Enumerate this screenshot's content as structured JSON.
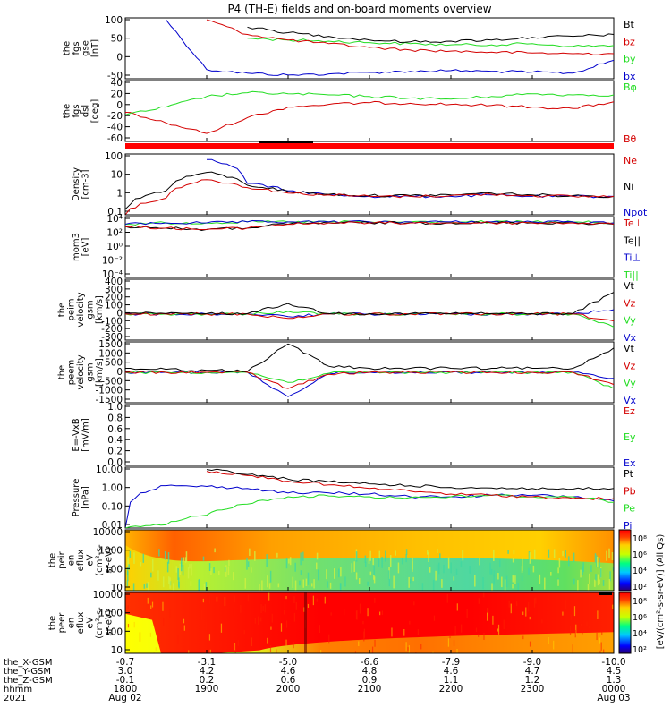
{
  "title": "P4 (TH-E) fields and on-board moments overview",
  "colors": {
    "black": "#000000",
    "red": "#d40000",
    "green": "#22dd22",
    "blue": "#0000cc",
    "flag_red": "#ff0000"
  },
  "time_axis": {
    "hhmm_ticks": [
      "1800",
      "1900",
      "2000",
      "2100",
      "2200",
      "2300",
      "0000"
    ],
    "x_gsm": [
      "-0.7",
      "-3.1",
      "-5.0",
      "-6.6",
      "-7.9",
      "-9.0",
      "-10.0"
    ],
    "y_gsm": [
      "3.0",
      "4.2",
      "4.6",
      "4.8",
      "4.6",
      "4.7",
      "4.5"
    ],
    "z_gsm": [
      "-0.1",
      "0.2",
      "0.6",
      "0.9",
      "1.1",
      "1.2",
      "1.3"
    ],
    "row_labels": [
      "the_X-GSM",
      "the_Y-GSM",
      "the_Z-GSM",
      "hhmm",
      "2021"
    ],
    "date_labels": [
      "Aug 02",
      "Aug 03"
    ]
  },
  "panels": [
    {
      "id": "fgs_gse",
      "ylabel_lines": [
        "the",
        "fgs",
        "gse",
        "[nT]"
      ],
      "yticks": [
        "100",
        "50",
        "0",
        "-50"
      ],
      "legend": [
        {
          "label": "Bt",
          "color": "black"
        },
        {
          "label": "bz",
          "color": "red"
        },
        {
          "label": "by",
          "color": "green"
        },
        {
          "label": "bx",
          "color": "blue"
        }
      ]
    },
    {
      "id": "fgs_dsl",
      "ylabel_lines": [
        "the",
        "fgs",
        "dsl",
        "[deg]"
      ],
      "yticks": [
        "40",
        "20",
        "0",
        "-20",
        "-40",
        "-60"
      ],
      "legend": [
        {
          "label": "Bφ",
          "color": "green"
        },
        {
          "label": "Bθ",
          "color": "red"
        }
      ]
    },
    {
      "id": "density",
      "ylabel_lines": [
        "Density",
        "[cm-3]"
      ],
      "yticks": [
        "100",
        "10",
        "1",
        "0.1"
      ],
      "legend": [
        {
          "label": "Ne",
          "color": "red"
        },
        {
          "label": "Ni",
          "color": "black"
        },
        {
          "label": "Npot",
          "color": "blue"
        }
      ]
    },
    {
      "id": "temperature",
      "ylabel_lines": [
        "mom3",
        "[eV]"
      ],
      "yticks": [
        "10⁴",
        "10²",
        "10⁰",
        "10⁻²",
        "10⁻⁴"
      ],
      "legend": [
        {
          "label": "Te⊥",
          "color": "red"
        },
        {
          "label": "Te||",
          "color": "black"
        },
        {
          "label": "Ti⊥",
          "color": "blue"
        },
        {
          "label": "Ti||",
          "color": "green"
        }
      ]
    },
    {
      "id": "peim_velocity",
      "ylabel_lines": [
        "the",
        "peim",
        "velocity",
        "gsm",
        "[km/s]"
      ],
      "yticks": [
        "400",
        "300",
        "200",
        "100",
        "0",
        "-100",
        "-200",
        "-300"
      ],
      "legend": [
        {
          "label": "Vt",
          "color": "black"
        },
        {
          "label": "Vz",
          "color": "red"
        },
        {
          "label": "Vy",
          "color": "green"
        },
        {
          "label": "Vx",
          "color": "blue"
        }
      ]
    },
    {
      "id": "peem_velocity",
      "ylabel_lines": [
        "the",
        "peem",
        "velocity",
        "gsm",
        "[km/s]"
      ],
      "yticks": [
        "1500",
        "1000",
        "500",
        "0",
        "-500",
        "-1000",
        "-1500"
      ],
      "legend": [
        {
          "label": "Vt",
          "color": "black"
        },
        {
          "label": "Vz",
          "color": "red"
        },
        {
          "label": "Vy",
          "color": "green"
        },
        {
          "label": "Vx",
          "color": "blue"
        }
      ]
    },
    {
      "id": "efield",
      "ylabel_lines": [
        "E=-VxB",
        "[mV/m]"
      ],
      "yticks": [
        "1.0",
        "0.8",
        "0.6",
        "0.4",
        "0.2",
        "0.0"
      ],
      "legend": [
        {
          "label": "Ez",
          "color": "red"
        },
        {
          "label": "Ey",
          "color": "green"
        },
        {
          "label": "Ex",
          "color": "blue"
        }
      ]
    },
    {
      "id": "pressure",
      "ylabel_lines": [
        "Pressure",
        "[nPa]"
      ],
      "yticks": [
        "10.00",
        "1.00",
        "0.10",
        "0.01"
      ],
      "legend": [
        {
          "label": "Pt",
          "color": "black"
        },
        {
          "label": "Pb",
          "color": "red"
        },
        {
          "label": "Pe",
          "color": "green"
        },
        {
          "label": "Pi",
          "color": "blue"
        }
      ]
    },
    {
      "id": "peir_spec",
      "ylabel_lines": [
        "the",
        "peir",
        "en",
        "eflux",
        "eV",
        "(cm²-s-",
        "sr-eV)"
      ],
      "yticks": [
        "10000",
        "1000",
        "100",
        "10"
      ]
    },
    {
      "id": "peer_spec",
      "ylabel_lines": [
        "the",
        "peer",
        "en",
        "eflux",
        "eV",
        "(cm²-s-",
        "sr-eV)"
      ],
      "yticks": [
        "10000",
        "1000",
        "100",
        "10"
      ]
    }
  ],
  "colorbar": {
    "label": "[eV/(cm²-s-sr-eV)] (All Qs)",
    "ticks_upper": [
      "10⁸",
      "10⁶",
      "10⁴",
      "10²"
    ],
    "ticks_lower": [
      "10⁸",
      "10⁶",
      "10⁴",
      "10²"
    ]
  },
  "chart_data": {
    "type": "line",
    "title": "P4 (TH-E) fields and on-board moments overview",
    "x_unit": "UT hhmm, 2021 Aug 02-03",
    "x": [
      "1800",
      "1830",
      "1900",
      "1930",
      "2000",
      "2030",
      "2100",
      "2130",
      "2200",
      "2230",
      "2300",
      "2330",
      "0000"
    ],
    "subplots": [
      {
        "id": "fgs_gse",
        "ylim": [
          -60,
          105
        ],
        "series": [
          {
            "name": "Bt",
            "values": [
              null,
              null,
              null,
              80,
              65,
              55,
              45,
              40,
              42,
              45,
              52,
              55,
              60
            ]
          },
          {
            "name": "bz",
            "values": [
              null,
              null,
              100,
              60,
              45,
              35,
              25,
              18,
              15,
              12,
              10,
              8,
              8
            ]
          },
          {
            "name": "by",
            "values": [
              null,
              null,
              null,
              50,
              45,
              42,
              38,
              35,
              32,
              32,
              35,
              28,
              30
            ]
          },
          {
            "name": "bx",
            "values": [
              null,
              100,
              -35,
              -45,
              -50,
              -47,
              -43,
              -40,
              -38,
              -40,
              -42,
              -45,
              -10
            ]
          }
        ]
      },
      {
        "id": "fgs_dsl",
        "ylim": [
          -70,
          45
        ],
        "series": [
          {
            "name": "Bφ",
            "values": [
              -20,
              -5,
              15,
              22,
              20,
              18,
              15,
              12,
              10,
              15,
              20,
              18,
              18
            ]
          },
          {
            "name": "Bθ",
            "values": [
              -15,
              -35,
              -55,
              -25,
              -5,
              0,
              3,
              2,
              0,
              -2,
              -5,
              -8,
              5
            ]
          }
        ]
      },
      {
        "id": "density",
        "ylog": true,
        "ylim": [
          0.1,
          200
        ],
        "series": [
          {
            "name": "Ne",
            "values": [
              0.1,
              0.8,
              8,
              3,
              1.5,
              1.2,
              1,
              1,
              1.1,
              1.3,
              1.1,
              1,
              1
            ]
          },
          {
            "name": "Ni",
            "values": [
              0.2,
              2,
              20,
              4,
              1.8,
              1.3,
              1.1,
              1.1,
              1.2,
              1.5,
              1.2,
              1.1,
              1
            ]
          },
          {
            "name": "Npot",
            "values": [
              null,
              null,
              100,
              5,
              2,
              1.2,
              1,
              1,
              1,
              1.2,
              1,
              1,
              1
            ]
          }
        ]
      },
      {
        "id": "temperature",
        "ylog": true,
        "ylim": [
          0.0001,
          10000
        ],
        "series": [
          {
            "name": "Te⊥",
            "values": [
              500,
              300,
              200,
              300,
              1000,
              1500,
              1500,
              1500,
              1500,
              1500,
              1500,
              1500,
              1000
            ]
          },
          {
            "name": "Te||",
            "values": [
              500,
              300,
              200,
              300,
              1000,
              1500,
              1500,
              1500,
              1500,
              1500,
              1500,
              1500,
              1000
            ]
          },
          {
            "name": "Ti⊥",
            "values": [
              1000,
              1500,
              1500,
              2000,
              2000,
              2000,
              2000,
              2000,
              2000,
              2000,
              2000,
              2000,
              1500
            ]
          },
          {
            "name": "Ti||",
            "values": [
              1000,
              1500,
              1500,
              2000,
              2000,
              2000,
              2000,
              2000,
              2000,
              2000,
              2000,
              2000,
              1500
            ]
          }
        ]
      },
      {
        "id": "peim_velocity",
        "ylim": [
          -300,
          400
        ],
        "series": [
          {
            "name": "Vt",
            "values": [
              10,
              5,
              5,
              5,
              120,
              5,
              5,
              5,
              5,
              5,
              5,
              5,
              250
            ]
          },
          {
            "name": "Vz",
            "values": [
              0,
              0,
              0,
              0,
              -50,
              0,
              0,
              0,
              0,
              0,
              0,
              0,
              -80
            ]
          },
          {
            "name": "Vy",
            "values": [
              0,
              0,
              0,
              0,
              30,
              0,
              0,
              0,
              0,
              0,
              0,
              0,
              -150
            ]
          },
          {
            "name": "Vx",
            "values": [
              0,
              0,
              0,
              0,
              -30,
              0,
              0,
              0,
              0,
              0,
              0,
              0,
              50
            ]
          }
        ]
      },
      {
        "id": "peem_velocity",
        "ylim": [
          -1500,
          1500
        ],
        "series": [
          {
            "name": "Vt",
            "values": [
              200,
              150,
              100,
              50,
              1400,
              300,
              200,
              200,
              200,
              200,
              200,
              200,
              1200
            ]
          },
          {
            "name": "Vz",
            "values": [
              0,
              0,
              0,
              0,
              -800,
              -100,
              0,
              0,
              0,
              0,
              0,
              0,
              -600
            ]
          },
          {
            "name": "Vy",
            "values": [
              0,
              0,
              0,
              0,
              -500,
              -50,
              0,
              0,
              0,
              0,
              0,
              0,
              -800
            ]
          },
          {
            "name": "Vx",
            "values": [
              0,
              0,
              0,
              0,
              -1200,
              -50,
              0,
              0,
              0,
              0,
              0,
              0,
              -300
            ]
          }
        ]
      },
      {
        "id": "pressure",
        "ylog": true,
        "ylim": [
          0.01,
          20
        ],
        "series": [
          {
            "name": "Pt",
            "values": [
              null,
              null,
              15,
              8,
              4.5,
              3.2,
              2.5,
              2,
              1.6,
              1.5,
              1.4,
              1.3,
              1.4
            ]
          },
          {
            "name": "Pb",
            "values": [
              null,
              null,
              12,
              7,
              3.5,
              2.2,
              1.4,
              1,
              0.7,
              0.6,
              0.5,
              0.4,
              0.4
            ]
          },
          {
            "name": "Pe",
            "values": [
              0.01,
              0.015,
              0.05,
              0.2,
              0.5,
              0.55,
              0.5,
              0.45,
              0.5,
              0.6,
              0.5,
              0.5,
              0.25
            ]
          },
          {
            "name": "Pi",
            "values": [
              0.01,
              2,
              1.8,
              1.4,
              0.8,
              0.8,
              0.7,
              0.5,
              0.5,
              0.6,
              0.6,
              0.5,
              0.3
            ]
          }
        ]
      }
    ]
  }
}
